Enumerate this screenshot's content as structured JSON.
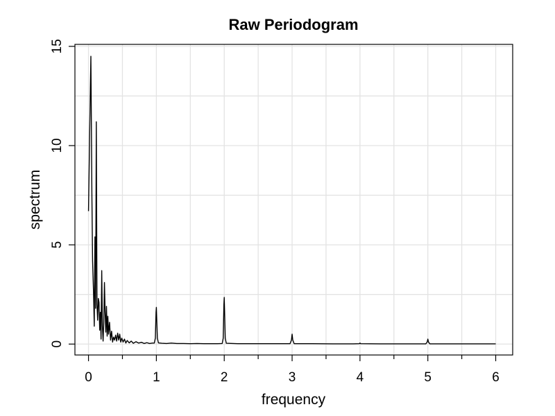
{
  "chart_data": {
    "type": "line",
    "title": "Raw Periodogram",
    "xlabel": "frequency",
    "ylabel": "spectrum",
    "xlim": [
      -0.2,
      6.25
    ],
    "ylim": [
      -0.55,
      15.1
    ],
    "x_ticks": [
      0,
      1,
      2,
      3,
      4,
      5,
      6
    ],
    "x_tick_labels": [
      "0",
      "1",
      "2",
      "3",
      "4",
      "5",
      "6"
    ],
    "x_minor_ticks": [
      0.5,
      1.5,
      2.5,
      3.5,
      4.5,
      5.5
    ],
    "y_ticks": [
      0,
      5,
      10,
      15
    ],
    "y_tick_labels": [
      "0",
      "5",
      "10",
      "15"
    ],
    "grid": true,
    "series": [
      {
        "name": "",
        "color": "#000000",
        "points": [
          [
            0.0,
            6.7
          ],
          [
            0.02,
            11.2
          ],
          [
            0.035,
            14.5
          ],
          [
            0.05,
            7.5
          ],
          [
            0.06,
            4.2
          ],
          [
            0.075,
            2.5
          ],
          [
            0.085,
            0.9
          ],
          [
            0.095,
            5.4
          ],
          [
            0.105,
            1.8
          ],
          [
            0.115,
            11.2
          ],
          [
            0.125,
            2.0
          ],
          [
            0.135,
            1.2
          ],
          [
            0.145,
            2.3
          ],
          [
            0.155,
            2.1
          ],
          [
            0.165,
            0.7
          ],
          [
            0.175,
            1.6
          ],
          [
            0.185,
            0.25
          ],
          [
            0.195,
            3.7
          ],
          [
            0.205,
            0.9
          ],
          [
            0.215,
            0.15
          ],
          [
            0.225,
            1.1
          ],
          [
            0.235,
            3.1
          ],
          [
            0.245,
            1.6
          ],
          [
            0.255,
            0.6
          ],
          [
            0.265,
            1.9
          ],
          [
            0.275,
            0.4
          ],
          [
            0.285,
            1.4
          ],
          [
            0.295,
            0.5
          ],
          [
            0.31,
            1.1
          ],
          [
            0.325,
            0.2
          ],
          [
            0.34,
            0.65
          ],
          [
            0.355,
            0.1
          ],
          [
            0.37,
            0.35
          ],
          [
            0.385,
            0.2
          ],
          [
            0.4,
            0.45
          ],
          [
            0.415,
            0.15
          ],
          [
            0.43,
            0.55
          ],
          [
            0.445,
            0.2
          ],
          [
            0.46,
            0.5
          ],
          [
            0.475,
            0.1
          ],
          [
            0.49,
            0.3
          ],
          [
            0.51,
            0.1
          ],
          [
            0.53,
            0.25
          ],
          [
            0.55,
            0.05
          ],
          [
            0.57,
            0.18
          ],
          [
            0.6,
            0.06
          ],
          [
            0.63,
            0.15
          ],
          [
            0.66,
            0.04
          ],
          [
            0.7,
            0.12
          ],
          [
            0.74,
            0.05
          ],
          [
            0.78,
            0.09
          ],
          [
            0.82,
            0.03
          ],
          [
            0.86,
            0.07
          ],
          [
            0.9,
            0.03
          ],
          [
            0.94,
            0.05
          ],
          [
            0.97,
            0.05
          ],
          [
            0.985,
            0.3
          ],
          [
            0.995,
            1.6
          ],
          [
            1.0,
            1.85
          ],
          [
            1.005,
            1.3
          ],
          [
            1.015,
            0.3
          ],
          [
            1.03,
            0.06
          ],
          [
            1.08,
            0.04
          ],
          [
            1.15,
            0.03
          ],
          [
            1.22,
            0.05
          ],
          [
            1.3,
            0.03
          ],
          [
            1.4,
            0.03
          ],
          [
            1.5,
            0.02
          ],
          [
            1.6,
            0.03
          ],
          [
            1.7,
            0.02
          ],
          [
            1.8,
            0.02
          ],
          [
            1.9,
            0.02
          ],
          [
            1.97,
            0.03
          ],
          [
            1.985,
            0.3
          ],
          [
            1.995,
            2.0
          ],
          [
            2.0,
            2.35
          ],
          [
            2.005,
            1.7
          ],
          [
            2.015,
            0.3
          ],
          [
            2.03,
            0.04
          ],
          [
            2.2,
            0.02
          ],
          [
            2.4,
            0.02
          ],
          [
            2.6,
            0.02
          ],
          [
            2.8,
            0.02
          ],
          [
            2.97,
            0.02
          ],
          [
            2.99,
            0.2
          ],
          [
            3.0,
            0.5
          ],
          [
            3.01,
            0.2
          ],
          [
            3.03,
            0.02
          ],
          [
            3.3,
            0.02
          ],
          [
            3.6,
            0.01
          ],
          [
            3.9,
            0.01
          ],
          [
            3.99,
            0.02
          ],
          [
            4.0,
            0.05
          ],
          [
            4.01,
            0.02
          ],
          [
            4.3,
            0.01
          ],
          [
            4.6,
            0.01
          ],
          [
            4.97,
            0.01
          ],
          [
            4.99,
            0.1
          ],
          [
            5.0,
            0.25
          ],
          [
            5.01,
            0.1
          ],
          [
            5.03,
            0.01
          ],
          [
            5.4,
            0.01
          ],
          [
            5.8,
            0.01
          ],
          [
            6.0,
            0.01
          ]
        ]
      }
    ]
  }
}
